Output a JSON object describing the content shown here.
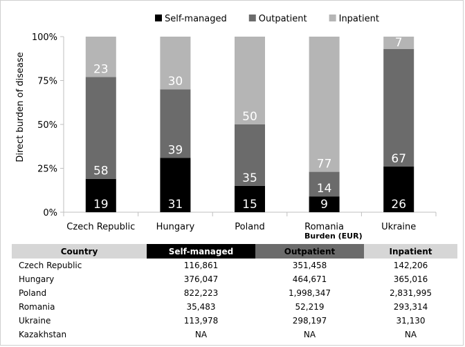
{
  "chart_data": {
    "type": "bar",
    "stacked": true,
    "percent": true,
    "categories": [
      "Czech Republic",
      "Hungary",
      "Poland",
      "Romania",
      "Ukraine"
    ],
    "series": [
      {
        "name": "Self-managed",
        "color": "#000000",
        "label_color": "#ffffff",
        "values": [
          19,
          31,
          15,
          9,
          26
        ]
      },
      {
        "name": "Outpatient",
        "color": "#6b6b6b",
        "label_color": "#ffffff",
        "values": [
          58,
          39,
          35,
          14,
          67
        ]
      },
      {
        "name": "Inpatient",
        "color": "#b5b5b5",
        "label_color": "#ffffff",
        "values": [
          23,
          30,
          50,
          77,
          7
        ]
      }
    ],
    "ylabel": "Direct burden of disease",
    "ylim": [
      0,
      100
    ],
    "yticks": [
      "0%",
      "25%",
      "50%",
      "75%",
      "100%"
    ],
    "legend_position": "top",
    "grid": false
  },
  "table": {
    "title": "Burden (EUR)",
    "columns": [
      {
        "label": "Country",
        "bg": "#d6d6d6",
        "color": "#000000"
      },
      {
        "label": "Self-managed",
        "bg": "#000000",
        "color": "#ffffff"
      },
      {
        "label": "Outpatient",
        "bg": "#6b6b6b",
        "color": "#000000"
      },
      {
        "label": "Inpatient",
        "bg": "#d6d6d6",
        "color": "#000000"
      }
    ],
    "rows": [
      [
        "Czech Republic",
        "116,861",
        "351,458",
        "142,206"
      ],
      [
        "Hungary",
        "376,047",
        "464,671",
        "365,016"
      ],
      [
        "Poland",
        "822,223",
        "1,998,347",
        "2,831,995"
      ],
      [
        "Romania",
        "35,483",
        "52,219",
        "293,314"
      ],
      [
        "Ukraine",
        "113,978",
        "298,197",
        "31,130"
      ],
      [
        "Kazakhstan",
        "NA",
        "NA",
        "NA"
      ]
    ]
  }
}
